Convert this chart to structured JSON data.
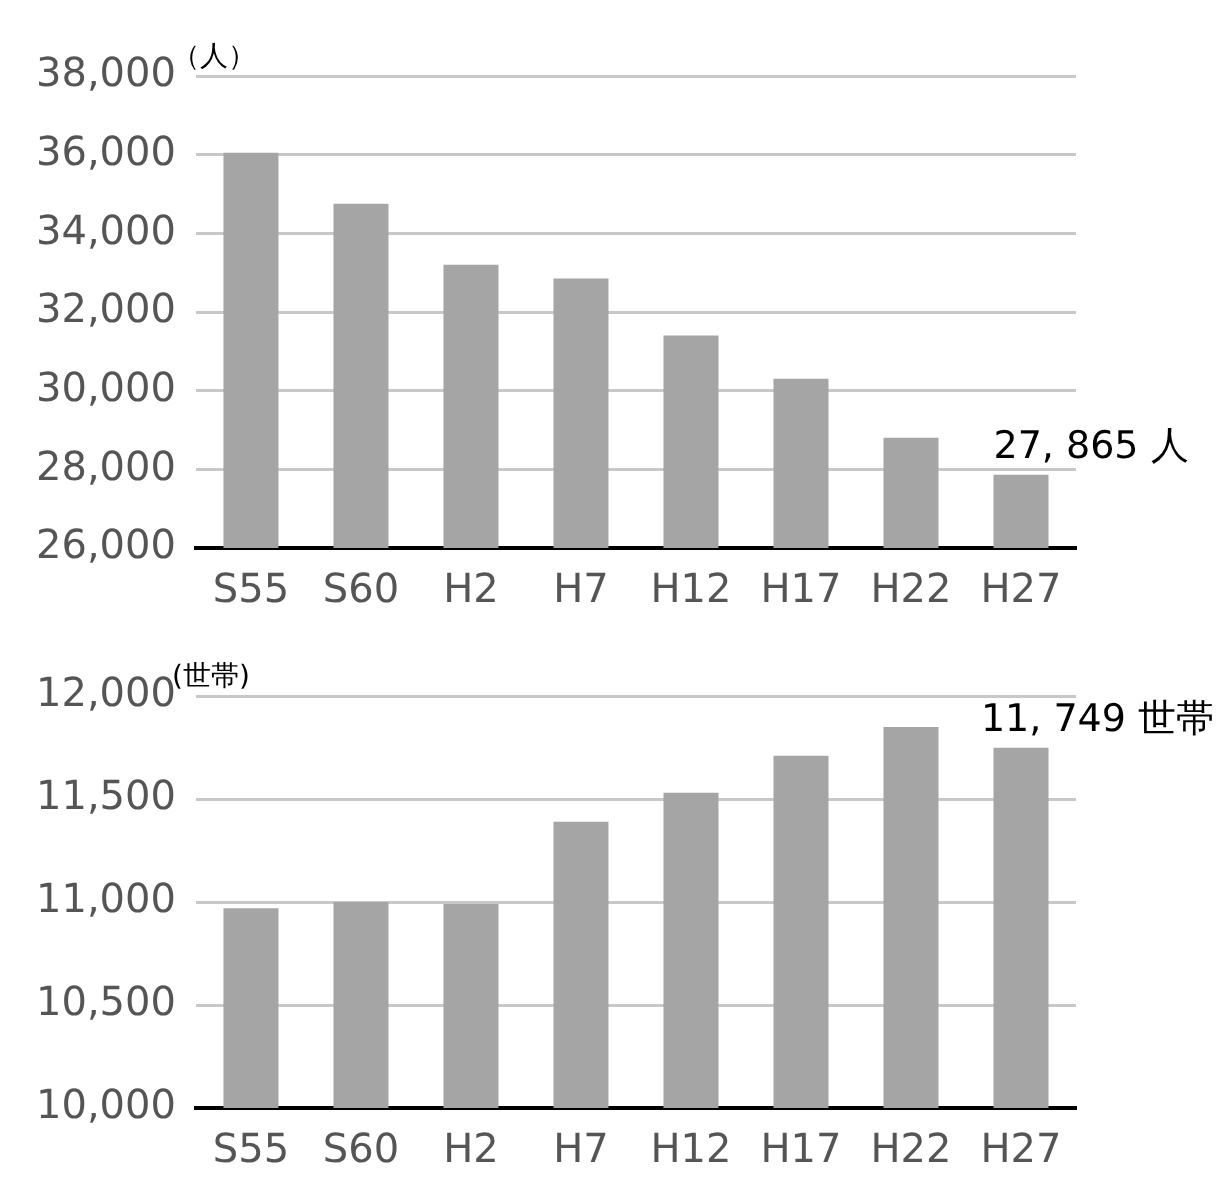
{
  "chart_data": [
    {
      "type": "bar",
      "ylabel": "（人）",
      "categories": [
        "S55",
        "S60",
        "H2",
        "H7",
        "H12",
        "H17",
        "H22",
        "H27"
      ],
      "color": "#a5a5a5",
      "values": [
        36050,
        34750,
        33200,
        32850,
        31400,
        30300,
        28800,
        27865
      ],
      "annotations": [
        {
          "text": "27, 865 人",
          "x": "H27",
          "y": 27865
        }
      ],
      "ylim": [
        26000,
        38000
      ],
      "yticks": [
        {
          "value": 26000,
          "label": "26,000"
        },
        {
          "value": 28000,
          "label": "28,000"
        },
        {
          "value": 30000,
          "label": "30,000"
        },
        {
          "value": 32000,
          "label": "32,000"
        },
        {
          "value": 34000,
          "label": "34,000"
        },
        {
          "value": 36000,
          "label": "36,000"
        },
        {
          "value": 38000,
          "label": "38,000"
        }
      ],
      "grid": "y"
    },
    {
      "type": "bar",
      "ylabel": "(世帯)",
      "categories": [
        "S55",
        "S60",
        "H2",
        "H7",
        "H12",
        "H17",
        "H22",
        "H27"
      ],
      "color": "#a5a5a5",
      "values": [
        10970,
        11000,
        10990,
        11390,
        11530,
        11710,
        11850,
        11749
      ],
      "annotations": [
        {
          "text": "11, 749 世帯",
          "x": "H27",
          "y": 11749
        }
      ],
      "ylim": [
        10000,
        12000
      ],
      "yticks": [
        {
          "value": 10000,
          "label": "10,000"
        },
        {
          "value": 10500,
          "label": "10,500"
        },
        {
          "value": 11000,
          "label": "11,000"
        },
        {
          "value": 11500,
          "label": "11,500"
        },
        {
          "value": 12000,
          "label": "12,000"
        }
      ],
      "grid": "y"
    }
  ]
}
